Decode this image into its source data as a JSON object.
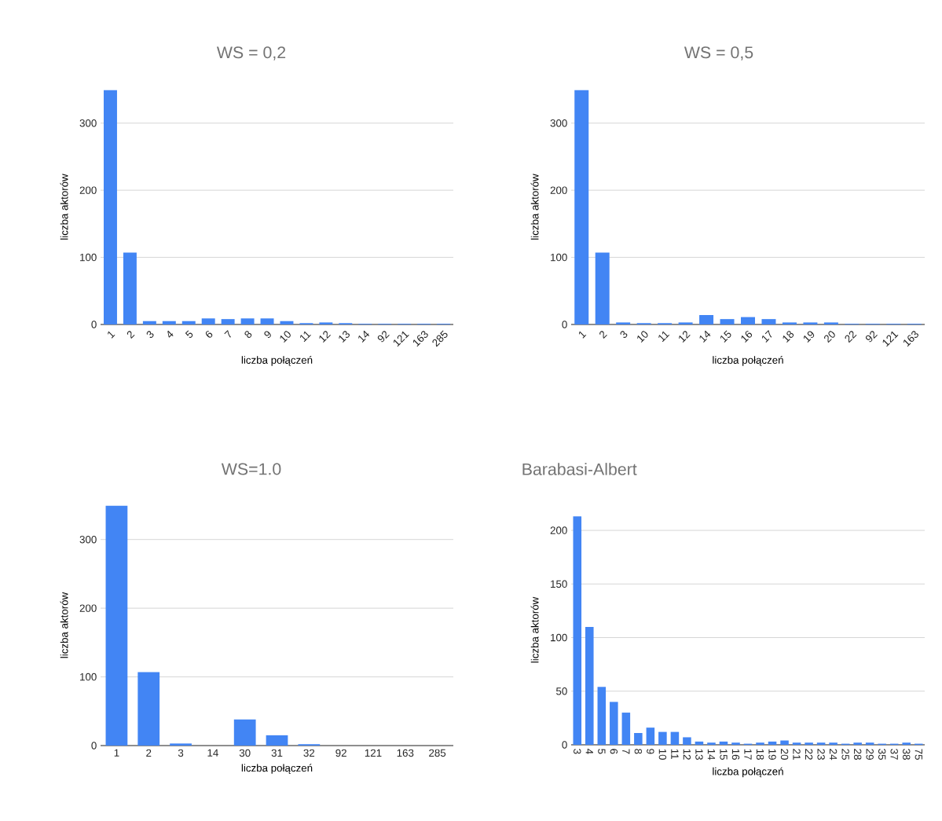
{
  "chart_data": [
    {
      "type": "bar",
      "title": "WS = 0,2",
      "xlabel": "liczba połączeń",
      "ylabel": "liczba aktorów",
      "categories": [
        "1",
        "2",
        "3",
        "4",
        "5",
        "6",
        "7",
        "8",
        "9",
        "10",
        "11",
        "12",
        "13",
        "14",
        "92",
        "121",
        "163",
        "285"
      ],
      "values": [
        349,
        107,
        5,
        5,
        5,
        9,
        8,
        9,
        9,
        5,
        2,
        3,
        2,
        1,
        1,
        1,
        1,
        1
      ],
      "color": "#4285f4",
      "ylim": [
        0,
        350
      ],
      "yticks": [
        0,
        100,
        200,
        300
      ],
      "grid": "y"
    },
    {
      "type": "bar",
      "title": "WS = 0,5",
      "xlabel": "liczba połączeń",
      "ylabel": "liczba aktorów",
      "categories": [
        "1",
        "2",
        "3",
        "10",
        "11",
        "12",
        "14",
        "15",
        "16",
        "17",
        "18",
        "19",
        "20",
        "22",
        "92",
        "121",
        "163"
      ],
      "values": [
        349,
        107,
        3,
        2,
        2,
        3,
        14,
        8,
        11,
        8,
        3,
        3,
        3,
        1,
        1,
        1,
        1
      ],
      "color": "#4285f4",
      "ylim": [
        0,
        350
      ],
      "yticks": [
        0,
        100,
        200,
        300
      ],
      "grid": "y"
    },
    {
      "type": "bar",
      "title": "WS=1.0",
      "xlabel": "liczba połączeń",
      "ylabel": "liczba aktorów",
      "categories": [
        "1",
        "2",
        "3",
        "14",
        "30",
        "31",
        "32",
        "92",
        "121",
        "163",
        "285"
      ],
      "values": [
        349,
        107,
        3,
        0,
        38,
        15,
        2,
        0,
        0,
        0,
        0
      ],
      "color": "#4285f4",
      "ylim": [
        0,
        350
      ],
      "yticks": [
        0,
        100,
        200,
        300
      ],
      "grid": "y"
    },
    {
      "type": "bar",
      "title": "Barabasi-Albert",
      "xlabel": "liczba połączeń",
      "ylabel": "liczba aktorów",
      "categories": [
        "3",
        "4",
        "5",
        "6",
        "7",
        "8",
        "9",
        "10",
        "11",
        "12",
        "13",
        "14",
        "15",
        "16",
        "17",
        "18",
        "19",
        "20",
        "21",
        "22",
        "23",
        "24",
        "25",
        "28",
        "29",
        "35",
        "37",
        "38",
        "75"
      ],
      "values": [
        213,
        110,
        54,
        40,
        30,
        11,
        16,
        12,
        12,
        7,
        3,
        2,
        3,
        2,
        1,
        2,
        3,
        4,
        2,
        2,
        2,
        2,
        1,
        2,
        2,
        1,
        1,
        2,
        1
      ],
      "color": "#4285f4",
      "ylim": [
        0,
        214
      ],
      "yticks": [
        0,
        50,
        100,
        150,
        200
      ],
      "grid": "y"
    }
  ]
}
